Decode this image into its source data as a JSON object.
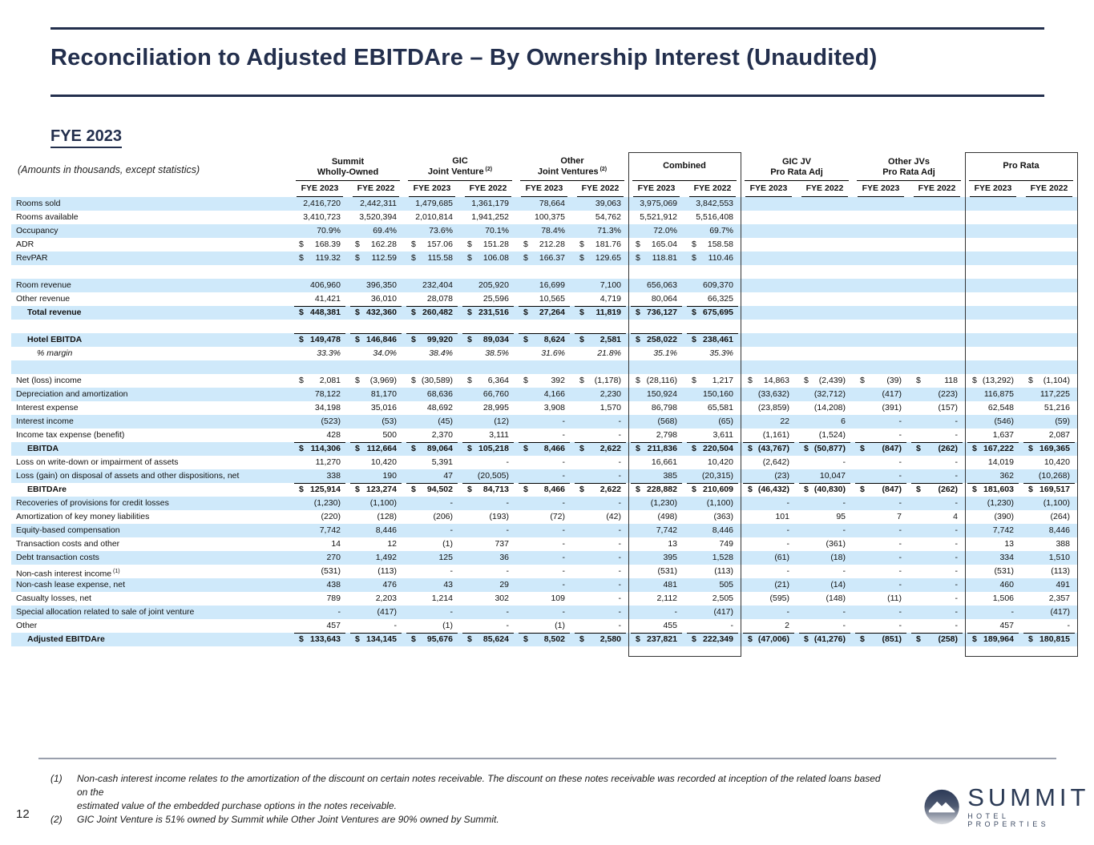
{
  "header": {
    "title": "Reconciliation to Adjusted EBITDAre – By Ownership Interest (Unaudited)",
    "section": "FYE 2023",
    "amounts_note": "(Amounts in thousands, except statistics)",
    "page_number": "12"
  },
  "logo": {
    "name": "SUMMIT",
    "sub": "HOTEL PROPERTIES"
  },
  "footnotes": [
    {
      "num": "(1)",
      "lines": [
        "Non-cash interest income relates to the amortization of the discount on certain notes receivable. The discount on these notes receivable was recorded at inception of the related loans based on the",
        "estimated value of the embedded purchase options in the notes receivable."
      ]
    },
    {
      "num": "(2)",
      "lines": [
        "GIC Joint Venture is 51% owned by Summit while Other Joint Ventures are 90% owned by Summit."
      ]
    }
  ],
  "table": {
    "year_headers": [
      "FYE 2023",
      "FYE 2022"
    ],
    "groups": [
      {
        "line1": "Summit",
        "line2": "Wholly-Owned"
      },
      {
        "line1": "GIC",
        "line2": "Joint Venture",
        "sup": "(2)"
      },
      {
        "line1": "Other",
        "line2": "Joint Ventures",
        "sup": "(2)"
      },
      {
        "line1": "Combined",
        "boxed": true
      },
      {
        "line1": "GIC JV",
        "line2": "Pro Rata Adj"
      },
      {
        "line1": "Other JVs",
        "line2": "Pro Rata Adj"
      },
      {
        "line1": "Pro Rata",
        "boxed": true
      }
    ],
    "rows": [
      {
        "label": "Rooms sold",
        "shade": true,
        "values": [
          "2,416,720",
          "2,442,311",
          "1,479,685",
          "1,361,179",
          "78,664",
          "39,063",
          "3,975,069",
          "3,842,553",
          "",
          "",
          "",
          "",
          "",
          ""
        ]
      },
      {
        "label": "Rooms available",
        "values": [
          "3,410,723",
          "3,520,394",
          "2,010,814",
          "1,941,252",
          "100,375",
          "54,762",
          "5,521,912",
          "5,516,408",
          "",
          "",
          "",
          "",
          "",
          ""
        ]
      },
      {
        "label": "Occupancy",
        "shade": true,
        "values": [
          "70.9%",
          "69.4%",
          "73.6%",
          "70.1%",
          "78.4%",
          "71.3%",
          "72.0%",
          "69.7%",
          "",
          "",
          "",
          "",
          "",
          ""
        ]
      },
      {
        "label": "ADR",
        "dollar": true,
        "values": [
          "168.39",
          "162.28",
          "157.06",
          "151.28",
          "212.28",
          "181.76",
          "165.04",
          "158.58",
          "",
          "",
          "",
          "",
          "",
          ""
        ]
      },
      {
        "label": "RevPAR",
        "shade": true,
        "dollar": true,
        "values": [
          "119.32",
          "112.59",
          "115.58",
          "106.08",
          "166.37",
          "129.65",
          "118.81",
          "110.46",
          "",
          "",
          "",
          "",
          "",
          ""
        ]
      },
      {
        "style": "blank"
      },
      {
        "label": "Room revenue",
        "shade": true,
        "values": [
          "406,960",
          "396,350",
          "232,404",
          "205,920",
          "16,699",
          "7,100",
          "656,063",
          "609,370",
          "",
          "",
          "",
          "",
          "",
          ""
        ]
      },
      {
        "label": "Other revenue",
        "values": [
          "41,421",
          "36,010",
          "28,078",
          "25,596",
          "10,565",
          "4,719",
          "80,064",
          "66,325",
          "",
          "",
          "",
          "",
          "",
          ""
        ]
      },
      {
        "label": "Total revenue",
        "style": "total",
        "shade": true,
        "dollar": true,
        "topline": true,
        "values": [
          "448,381",
          "432,360",
          "260,482",
          "231,516",
          "27,264",
          "11,819",
          "736,127",
          "675,695",
          "",
          "",
          "",
          "",
          "",
          ""
        ]
      },
      {
        "style": "blank"
      },
      {
        "label": "Hotel EBITDA",
        "style": "total",
        "shade": true,
        "dollar": true,
        "topline": true,
        "values": [
          "149,478",
          "146,846",
          "99,920",
          "89,034",
          "8,624",
          "2,581",
          "258,022",
          "238,461",
          "",
          "",
          "",
          "",
          "",
          ""
        ]
      },
      {
        "label": "% margin",
        "style": "pct",
        "values": [
          "33.3%",
          "34.0%",
          "38.4%",
          "38.5%",
          "31.6%",
          "21.8%",
          "35.1%",
          "35.3%",
          "",
          "",
          "",
          "",
          "",
          ""
        ]
      },
      {
        "style": "blank",
        "shade": true
      },
      {
        "label": "Net (loss) income",
        "dollar": true,
        "values": [
          "2,081",
          "(3,969)",
          "(30,589)",
          "6,364",
          "392",
          "(1,178)",
          "(28,116)",
          "1,217",
          "14,863",
          "(2,439)",
          "(39)",
          "118",
          "(13,292)",
          "(1,104)"
        ]
      },
      {
        "label": "Depreciation and amortization",
        "shade": true,
        "values": [
          "78,122",
          "81,170",
          "68,636",
          "66,760",
          "4,166",
          "2,230",
          "150,924",
          "150,160",
          "(33,632)",
          "(32,712)",
          "(417)",
          "(223)",
          "116,875",
          "117,225"
        ]
      },
      {
        "label": "Interest expense",
        "values": [
          "34,198",
          "35,016",
          "48,692",
          "28,995",
          "3,908",
          "1,570",
          "86,798",
          "65,581",
          "(23,859)",
          "(14,208)",
          "(391)",
          "(157)",
          "62,548",
          "51,216"
        ]
      },
      {
        "label": "Interest income",
        "shade": true,
        "values": [
          "(523)",
          "(53)",
          "(45)",
          "(12)",
          "-",
          "-",
          "(568)",
          "(65)",
          "22",
          "6",
          "-",
          "-",
          "(546)",
          "(59)"
        ]
      },
      {
        "label": "Income tax expense (benefit)",
        "values": [
          "428",
          "500",
          "2,370",
          "3,111",
          "-",
          "-",
          "2,798",
          "3,611",
          "(1,161)",
          "(1,524)",
          "-",
          "-",
          "1,637",
          "2,087"
        ]
      },
      {
        "label": "EBITDA",
        "style": "total",
        "shade": true,
        "dollar": true,
        "topline": true,
        "values": [
          "114,306",
          "112,664",
          "89,064",
          "105,218",
          "8,466",
          "2,622",
          "211,836",
          "220,504",
          "(43,767)",
          "(50,877)",
          "(847)",
          "(262)",
          "167,222",
          "169,365"
        ]
      },
      {
        "label": "Loss on write-down or impairment of assets",
        "values": [
          "11,270",
          "10,420",
          "5,391",
          "-",
          "-",
          "-",
          "16,661",
          "10,420",
          "(2,642)",
          "-",
          "-",
          "-",
          "14,019",
          "10,420"
        ]
      },
      {
        "label": "Loss (gain) on disposal of assets and other dispositions, net",
        "shade": true,
        "values": [
          "338",
          "190",
          "47",
          "(20,505)",
          "-",
          "-",
          "385",
          "(20,315)",
          "(23)",
          "10,047",
          "-",
          "-",
          "362",
          "(10,268)"
        ]
      },
      {
        "label": "EBITDAre",
        "style": "total",
        "dollar": true,
        "topline": true,
        "values": [
          "125,914",
          "123,274",
          "94,502",
          "84,713",
          "8,466",
          "2,622",
          "228,882",
          "210,609",
          "(46,432)",
          "(40,830)",
          "(847)",
          "(262)",
          "181,603",
          "169,517"
        ]
      },
      {
        "label": "Recoveries of provisions for credit losses",
        "shade": true,
        "values": [
          "(1,230)",
          "(1,100)",
          "-",
          "-",
          "-",
          "-",
          "(1,230)",
          "(1,100)",
          "-",
          "-",
          "-",
          "-",
          "(1,230)",
          "(1,100)"
        ]
      },
      {
        "label": "Amortization of key money liabilities",
        "values": [
          "(220)",
          "(128)",
          "(206)",
          "(193)",
          "(72)",
          "(42)",
          "(498)",
          "(363)",
          "101",
          "95",
          "7",
          "4",
          "(390)",
          "(264)"
        ]
      },
      {
        "label": "Equity-based compensation",
        "shade": true,
        "values": [
          "7,742",
          "8,446",
          "-",
          "-",
          "-",
          "-",
          "7,742",
          "8,446",
          "-",
          "-",
          "-",
          "-",
          "7,742",
          "8,446"
        ]
      },
      {
        "label": "Transaction costs and other",
        "values": [
          "14",
          "12",
          "(1)",
          "737",
          "-",
          "-",
          "13",
          "749",
          "-",
          "(361)",
          "-",
          "-",
          "13",
          "388"
        ]
      },
      {
        "label": "Debt transaction costs",
        "shade": true,
        "values": [
          "270",
          "1,492",
          "125",
          "36",
          "-",
          "-",
          "395",
          "1,528",
          "(61)",
          "(18)",
          "-",
          "-",
          "334",
          "1,510"
        ]
      },
      {
        "label": "Non-cash interest income",
        "sup": "(1)",
        "values": [
          "(531)",
          "(113)",
          "-",
          "-",
          "-",
          "-",
          "(531)",
          "(113)",
          "-",
          "-",
          "-",
          "-",
          "(531)",
          "(113)"
        ]
      },
      {
        "label": "Non-cash lease expense, net",
        "shade": true,
        "values": [
          "438",
          "476",
          "43",
          "29",
          "-",
          "-",
          "481",
          "505",
          "(21)",
          "(14)",
          "-",
          "-",
          "460",
          "491"
        ]
      },
      {
        "label": "Casualty losses, net",
        "values": [
          "789",
          "2,203",
          "1,214",
          "302",
          "109",
          "-",
          "2,112",
          "2,505",
          "(595)",
          "(148)",
          "(11)",
          "-",
          "1,506",
          "2,357"
        ]
      },
      {
        "label": "Special allocation related to sale of joint venture",
        "shade": true,
        "values": [
          "-",
          "(417)",
          "-",
          "-",
          "-",
          "-",
          "-",
          "(417)",
          "-",
          "-",
          "-",
          "-",
          "-",
          "(417)"
        ]
      },
      {
        "label": "Other",
        "values": [
          "457",
          "-",
          "(1)",
          "-",
          "(1)",
          "-",
          "455",
          "-",
          "2",
          "-",
          "-",
          "-",
          "457",
          "-"
        ]
      },
      {
        "label": "Adjusted EBITDAre",
        "style": "total",
        "shade": true,
        "dollar": true,
        "topline": true,
        "values": [
          "133,643",
          "134,145",
          "95,676",
          "85,624",
          "8,502",
          "2,580",
          "237,821",
          "222,349",
          "(47,006)",
          "(41,276)",
          "(851)",
          "(258)",
          "189,964",
          "180,815"
        ]
      }
    ]
  }
}
